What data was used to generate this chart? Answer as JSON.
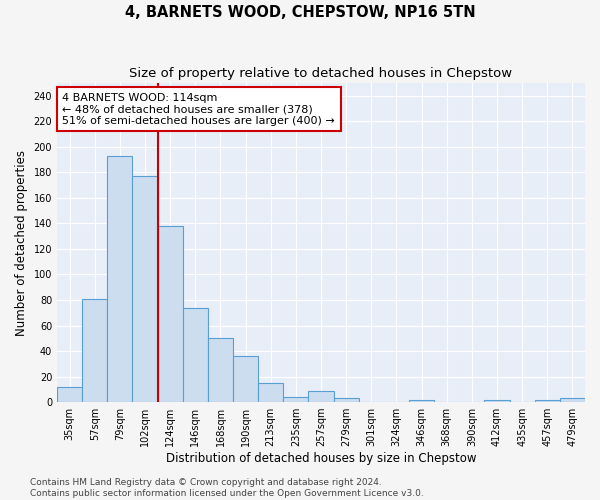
{
  "title": "4, BARNETS WOOD, CHEPSTOW, NP16 5TN",
  "subtitle": "Size of property relative to detached houses in Chepstow",
  "xlabel": "Distribution of detached houses by size in Chepstow",
  "ylabel": "Number of detached properties",
  "categories": [
    "35sqm",
    "57sqm",
    "79sqm",
    "102sqm",
    "124sqm",
    "146sqm",
    "168sqm",
    "190sqm",
    "213sqm",
    "235sqm",
    "257sqm",
    "279sqm",
    "301sqm",
    "324sqm",
    "346sqm",
    "368sqm",
    "390sqm",
    "412sqm",
    "435sqm",
    "457sqm",
    "479sqm"
  ],
  "values": [
    12,
    81,
    193,
    177,
    138,
    74,
    50,
    36,
    15,
    4,
    9,
    3,
    0,
    0,
    2,
    0,
    0,
    2,
    0,
    2,
    3
  ],
  "bar_color": "#ccddf0",
  "bar_edge_color": "#5a9fd4",
  "vline_x_index": 3,
  "vline_color": "#cc0000",
  "annotation_text": "4 BARNETS WOOD: 114sqm\n← 48% of detached houses are smaller (378)\n51% of semi-detached houses are larger (400) →",
  "annotation_box_color": "#ffffff",
  "annotation_box_edge_color": "#cc0000",
  "ylim": [
    0,
    250
  ],
  "yticks": [
    0,
    20,
    40,
    60,
    80,
    100,
    120,
    140,
    160,
    180,
    200,
    220,
    240
  ],
  "background_color": "#e8eef8",
  "grid_color": "#ffffff",
  "footer_line1": "Contains HM Land Registry data © Crown copyright and database right 2024.",
  "footer_line2": "Contains public sector information licensed under the Open Government Licence v3.0.",
  "title_fontsize": 10.5,
  "subtitle_fontsize": 9.5,
  "xlabel_fontsize": 8.5,
  "ylabel_fontsize": 8.5,
  "tick_fontsize": 7,
  "annotation_fontsize": 8,
  "footer_fontsize": 6.5
}
